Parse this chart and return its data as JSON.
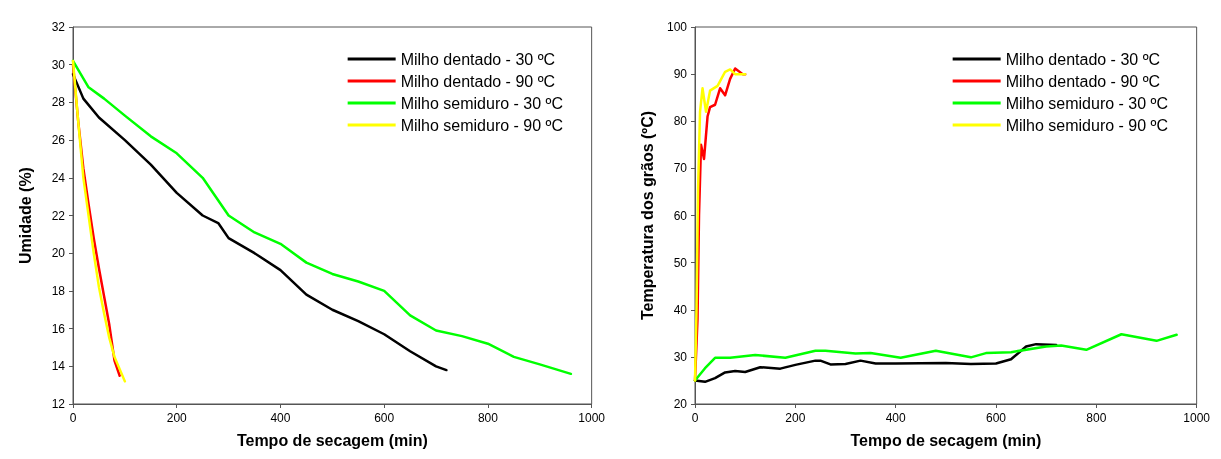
{
  "chart_data": [
    {
      "type": "line",
      "xlabel": "Tempo de secagem (min)",
      "ylabel": "Umidade (%)",
      "xlim": [
        0,
        1000
      ],
      "xticks": [
        0,
        200,
        400,
        600,
        800,
        1000
      ],
      "ylim": [
        12,
        32
      ],
      "yticks": [
        12,
        14,
        16,
        18,
        20,
        22,
        24,
        26,
        28,
        30,
        32
      ],
      "grid": false,
      "legend": "top right",
      "marker": "none",
      "line_style": "solid",
      "series": [
        {
          "name": "Milho dentado - 30 ºC",
          "color": "#000000",
          "x": [
            0,
            20,
            50,
            100,
            150,
            200,
            250,
            280,
            300,
            350,
            400,
            450,
            500,
            550,
            600,
            650,
            700,
            720
          ],
          "values": [
            29.5,
            28.2,
            27.2,
            26,
            24.7,
            23.2,
            22,
            21.6,
            20.8,
            20,
            19.1,
            17.8,
            17,
            16.4,
            15.7,
            14.8,
            14,
            13.8
          ]
        },
        {
          "name": "Milho dentado - 90 ºC",
          "color": "#ff0000",
          "x": [
            0,
            10,
            20,
            30,
            40,
            50,
            60,
            70,
            80,
            90
          ],
          "values": [
            30,
            27,
            24.5,
            22.6,
            20.8,
            19.2,
            17.7,
            16.2,
            14.3,
            13.5
          ]
        },
        {
          "name": "Milho semiduro - 30 ºC",
          "color": "#00ff00",
          "x": [
            0,
            30,
            60,
            100,
            150,
            200,
            250,
            300,
            350,
            400,
            450,
            500,
            550,
            600,
            650,
            700,
            750,
            800,
            850,
            900,
            960
          ],
          "values": [
            30.2,
            28.8,
            28.2,
            27.3,
            26.2,
            25.3,
            24,
            22,
            21.1,
            20.5,
            19.5,
            18.9,
            18.5,
            18,
            16.7,
            15.9,
            15.6,
            15.2,
            14.5,
            14.1,
            13.6
          ]
        },
        {
          "name": "Milho semiduro - 90 ºC",
          "color": "#ffff00",
          "x": [
            0,
            10,
            20,
            30,
            40,
            50,
            60,
            70,
            80,
            100
          ],
          "values": [
            30.2,
            27,
            24,
            22,
            20,
            18.2,
            16.8,
            15.5,
            14.5,
            13.2
          ]
        }
      ]
    },
    {
      "type": "line",
      "xlabel": "Tempo de secagem (min)",
      "ylabel": "Temperatura dos grãos (ºC)",
      "xlim": [
        0,
        1000
      ],
      "xticks": [
        0,
        200,
        400,
        600,
        800,
        1000
      ],
      "ylim": [
        20,
        100
      ],
      "yticks": [
        20,
        30,
        40,
        50,
        60,
        70,
        80,
        90,
        100
      ],
      "grid": false,
      "legend": "top right",
      "marker": "none",
      "line_style": "solid",
      "series": [
        {
          "name": "Milho dentado - 30 ºC",
          "color": "#000000",
          "x": [
            0,
            20,
            40,
            60,
            80,
            100,
            130,
            170,
            200,
            240,
            250,
            270,
            300,
            330,
            360,
            400,
            500,
            550,
            600,
            630,
            660,
            680,
            720
          ],
          "values": [
            25,
            24.7,
            25.5,
            26.7,
            27,
            26.8,
            27.8,
            27.5,
            28.3,
            29.2,
            29.2,
            28.4,
            28.5,
            29.2,
            28.6,
            28.6,
            28.7,
            28.5,
            28.6,
            29.5,
            32.2,
            32.7,
            32.5
          ]
        },
        {
          "name": "Milho dentado - 90 ºC",
          "color": "#ff0000",
          "x": [
            0,
            5,
            8,
            12,
            18,
            25,
            30,
            40,
            50,
            60,
            70,
            80,
            95,
            100
          ],
          "values": [
            25,
            38,
            60,
            75,
            72,
            81,
            83,
            83.5,
            87,
            85.5,
            89,
            91.2,
            90,
            90
          ]
        },
        {
          "name": "Milho semiduro - 30 ºC",
          "color": "#00ff00",
          "x": [
            0,
            20,
            40,
            70,
            120,
            180,
            240,
            260,
            320,
            350,
            410,
            480,
            550,
            580,
            630,
            700,
            730,
            780,
            850,
            920,
            960
          ],
          "values": [
            25,
            27.6,
            29.8,
            29.8,
            30.4,
            29.8,
            31.3,
            31.3,
            30.7,
            30.8,
            29.8,
            31.3,
            29.9,
            30.8,
            31,
            32.2,
            32.4,
            31.5,
            34.8,
            33.4,
            34.7
          ]
        },
        {
          "name": "Milho semiduro - 90 ºC",
          "color": "#ffff00",
          "x": [
            0,
            3,
            6,
            10,
            15,
            22,
            30,
            45,
            60,
            70,
            80,
            100
          ],
          "values": [
            25,
            40,
            65,
            82,
            87,
            82,
            86.5,
            87.5,
            90.5,
            91,
            90,
            90
          ]
        }
      ]
    }
  ]
}
